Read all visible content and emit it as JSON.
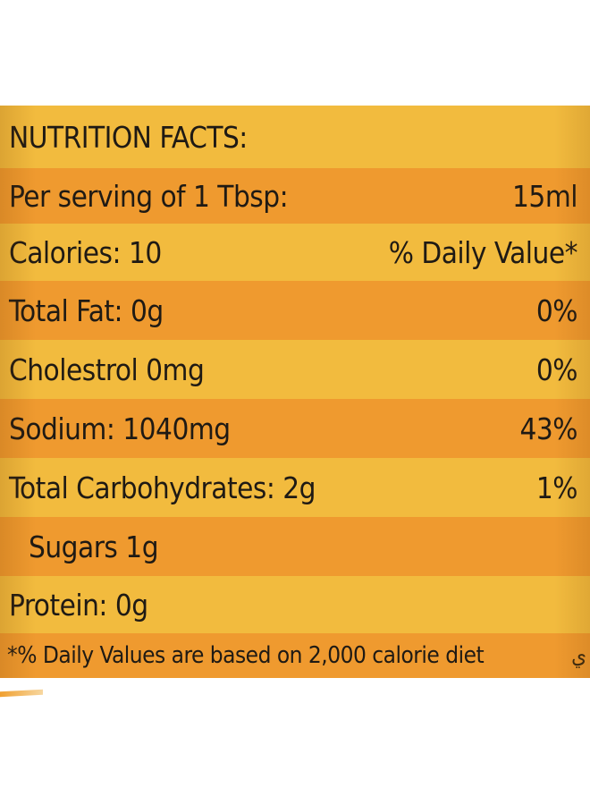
{
  "title": "NUTRITION FACTS:",
  "serving": {
    "label": "Per serving of 1 Tbsp:",
    "value": "15ml"
  },
  "calories": {
    "label": "Calories: 10",
    "header": "% Daily Value*"
  },
  "nutrients": [
    {
      "label": "Total Fat: 0g",
      "value": "0%"
    },
    {
      "label": "Cholestrol 0mg",
      "value": "0%"
    },
    {
      "label": "Sodium: 1040mg",
      "value": "43%"
    },
    {
      "label": "Total Carbohydrates: 2g",
      "value": "1%"
    },
    {
      "label": "Sugars 1g",
      "value": ""
    },
    {
      "label": "Protein: 0g",
      "value": ""
    }
  ],
  "footnote": "*% Daily Values are based on 2,000 calorie diet",
  "footnote_trailing_glyph": "ي"
}
